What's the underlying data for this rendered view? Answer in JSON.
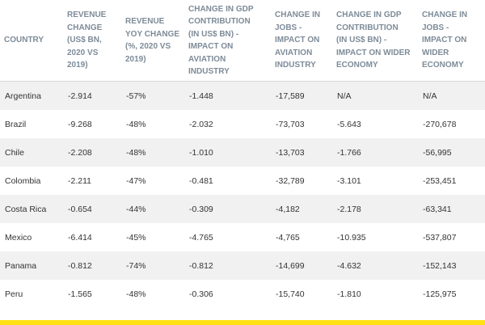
{
  "table": {
    "headers": [
      [
        "COUNTRY"
      ],
      [
        "REVENUE",
        "CHANGE",
        "(US$ BN,",
        "2020 VS",
        "2019)"
      ],
      [
        "REVENUE",
        "YOY CHANGE",
        "(%, 2020 VS",
        "2019)"
      ],
      [
        "CHANGE IN GDP",
        "CONTRIBUTION",
        "(IN US$ BN) -",
        "IMPACT ON",
        "AVIATION",
        "INDUSTRY"
      ],
      [
        "CHANGE IN",
        "JOBS -",
        "IMPACT ON",
        "AVIATION",
        "INDUSTRY"
      ],
      [
        "CHANGE IN GDP",
        "CONTRIBUTION",
        "(IN US$ BN) -",
        "IMPACT ON WIDER",
        "ECONOMY"
      ],
      [
        "CHANGE IN",
        "JOBS -",
        "IMPACT ON",
        "WIDER",
        "ECONOMY"
      ]
    ],
    "rows": [
      [
        "Argentina",
        "-2.914",
        "-57%",
        "-1.448",
        "-17,589",
        "N/A",
        "N/A"
      ],
      [
        "Brazil",
        "-9.268",
        "-48%",
        "-2.032",
        "-73,703",
        "-5.643",
        "-270,678"
      ],
      [
        "Chile",
        "-2.208",
        "-48%",
        "-1.010",
        "-13,703",
        "-1.766",
        "-56,995"
      ],
      [
        "Colombia",
        "-2.211",
        "-47%",
        "-0.481",
        "-32,789",
        "-3.101",
        "-253,451"
      ],
      [
        "Costa Rica",
        "-0.654",
        "-44%",
        "-0.309",
        "-4,182",
        "-2.178",
        "-63,341"
      ],
      [
        "Mexico",
        "-6.414",
        "-45%",
        "-4.765",
        "-4,765",
        "-10.935",
        "-537,807"
      ],
      [
        "Panama",
        "-0.812",
        "-74%",
        "-0.812",
        "-14,699",
        "-4.632",
        "-152,143"
      ],
      [
        "Peru",
        "-1.565",
        "-48%",
        "-0.306",
        "-15,740",
        "-1.810",
        "-125,975"
      ]
    ]
  }
}
